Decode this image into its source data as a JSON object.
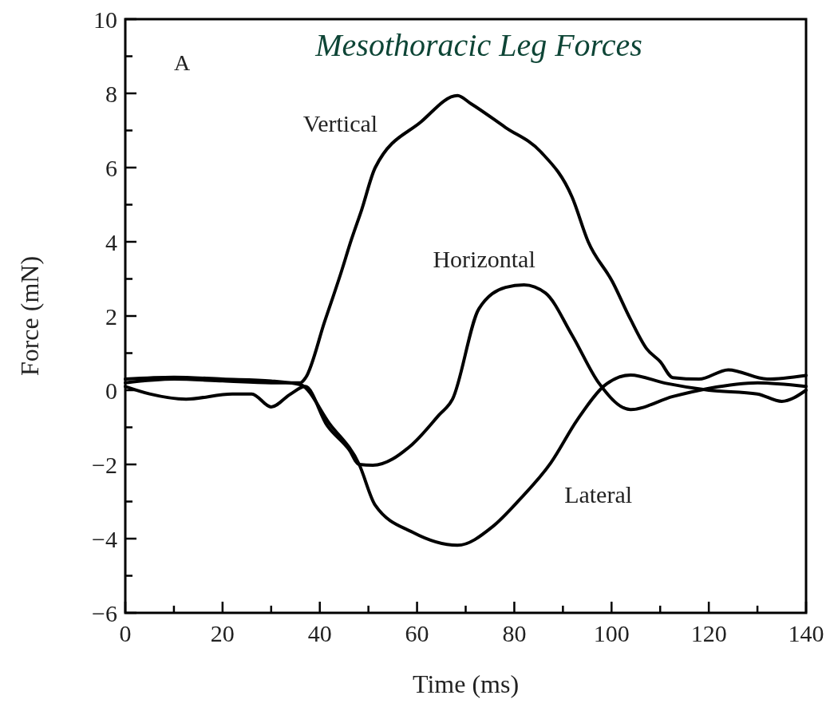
{
  "chart_data": {
    "type": "line",
    "title": "Mesothoracic Leg Forces",
    "xlabel": "Time (ms)",
    "ylabel": "Force (mN)",
    "annotations": [
      "A"
    ],
    "xlim": [
      0,
      140
    ],
    "ylim": [
      -6,
      10
    ],
    "xticks": [
      0,
      {
        "value": 10,
        "label": null
      },
      20,
      {
        "value": 30,
        "label": null
      },
      40,
      {
        "value": 50,
        "label": null
      },
      60,
      {
        "value": 70,
        "label": null
      },
      80,
      {
        "value": 90,
        "label": null
      },
      100,
      {
        "value": 110,
        "label": null
      },
      120,
      {
        "value": 130,
        "label": null
      },
      140
    ],
    "yticks": [
      {
        "value": -6,
        "label": "−6"
      },
      {
        "value": -5,
        "label": null
      },
      {
        "value": -4,
        "label": "−4"
      },
      {
        "value": -3,
        "label": null
      },
      {
        "value": -2,
        "label": "−2"
      },
      {
        "value": -1,
        "label": null
      },
      0,
      {
        "value": 1,
        "label": null
      },
      2,
      {
        "value": 3,
        "label": null
      },
      4,
      {
        "value": 5,
        "label": null
      },
      6,
      {
        "value": 7,
        "label": null
      },
      8,
      {
        "value": 9,
        "label": null
      },
      10
    ],
    "grid": false,
    "marker": "none",
    "line_style": "solid",
    "series": [
      {
        "name": "Vertical",
        "color": "#000000",
        "x": [
          0,
          10,
          20,
          30,
          36,
          37.1,
          41,
          44.3,
          46.5,
          48.6,
          51.4,
          60.8,
          68.3,
          71.1,
          78.2,
          85.4,
          91.9,
          95.2,
          100.2,
          103.9,
          107.2,
          110,
          112.6,
          118,
          124,
          132,
          140
        ],
        "values": [
          0.2,
          0.3,
          0.25,
          0.2,
          0.2,
          0.34,
          1.85,
          3.14,
          4.06,
          4.86,
          6.0,
          7.23,
          7.94,
          7.72,
          7.08,
          6.43,
          5.2,
          4.0,
          2.92,
          1.91,
          1.12,
          0.77,
          0.34,
          0.3,
          0.55,
          0.3,
          0.4
        ]
      },
      {
        "name": "Horizontal",
        "color": "#000000",
        "x": [
          0,
          5,
          12.5,
          22,
          26,
          30,
          34,
          37,
          41.5,
          46,
          48.1,
          50.9,
          59,
          64.5,
          67.3,
          72.7,
          78.2,
          82,
          86.4,
          91.9,
          97.4,
          103.9,
          112.6,
          120,
          130,
          140
        ],
        "values": [
          0.1,
          -0.1,
          -0.24,
          -0.1,
          -0.1,
          -0.45,
          -0.1,
          0.1,
          -0.95,
          -1.6,
          -2.0,
          -2.02,
          -1.46,
          -0.67,
          -0.24,
          2.19,
          2.77,
          2.84,
          2.62,
          1.48,
          0.19,
          -0.52,
          -0.17,
          0.05,
          0.2,
          0.1
        ]
      },
      {
        "name": "Lateral",
        "color": "#000000",
        "x": [
          0,
          10,
          20,
          30,
          36,
          42,
          48.1,
          51.4,
          59.1,
          68.3,
          75.5,
          81,
          87.5,
          92.9,
          98.5,
          103.9,
          111,
          120,
          130,
          135,
          140
        ],
        "values": [
          0.3,
          0.35,
          0.3,
          0.25,
          0.15,
          -0.9,
          -2.0,
          -3.1,
          -3.83,
          -4.18,
          -3.68,
          -2.96,
          -1.96,
          -0.81,
          0.12,
          0.41,
          0.19,
          0.0,
          -0.1,
          -0.3,
          0.0
        ]
      }
    ]
  }
}
